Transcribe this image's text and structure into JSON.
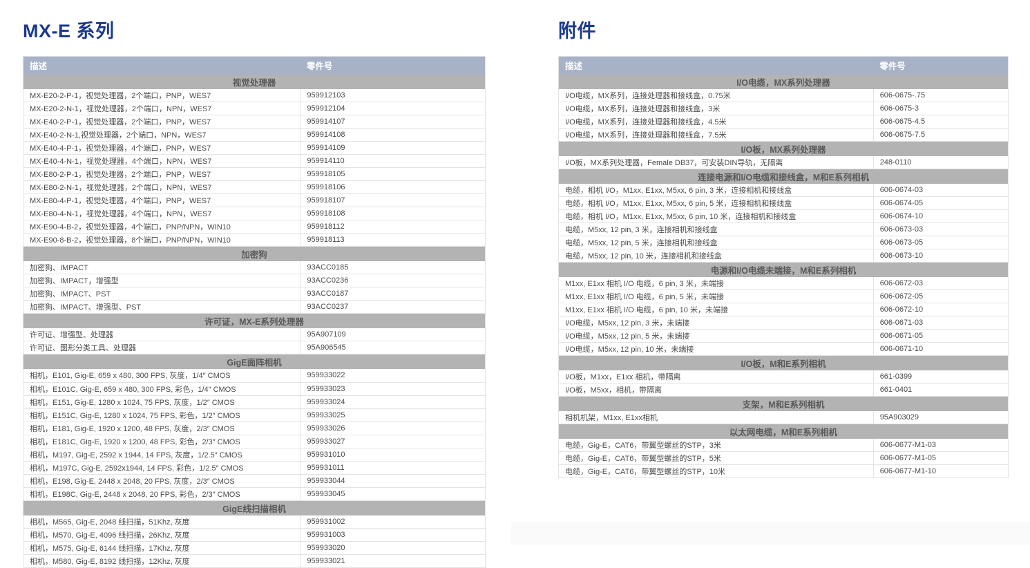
{
  "colors": {
    "title_color": "#1b3a8e",
    "header_bg": "#a7b2c7",
    "header_text": "#ffffff",
    "section_bg": "#b3b3b3",
    "section_text": "#595959",
    "row_text": "#4b4b4b",
    "border": "#e3e3e3",
    "footer_shade": "#fafafa"
  },
  "left": {
    "title": "MX-E 系列",
    "columns": {
      "description": "描述",
      "part": "零件号"
    },
    "sections": [
      {
        "header": "视觉处理器",
        "tall": false,
        "rows": [
          {
            "description": "MX-E20-2-P-1，视觉处理器，2个端口，PNP，WES7",
            "part": "959912103"
          },
          {
            "description": "MX-E20-2-N-1，视觉处理器，2个端口，NPN，WES7",
            "part": "959912104"
          },
          {
            "description": "MX-E40-2-P-1，视觉处理器，2个端口，PNP，WES7",
            "part": "959914107"
          },
          {
            "description": "MX-E40-2-N-1,视觉处理器，2个端口，NPN，WES7",
            "part": "959914108"
          },
          {
            "description": "MX-E40-4-P-1，视觉处理器，4个端口，PNP，WES7",
            "part": "959914109"
          },
          {
            "description": "MX-E40-4-N-1，视觉处理器，4个端口，NPN，WES7",
            "part": "959914110"
          },
          {
            "description": "MX-E80-2-P-1，视觉处理器，2个端口，PNP，WES7",
            "part": "959918105"
          },
          {
            "description": "MX-E80-2-N-1，视觉处理器，2个端口，NPN，WES7",
            "part": "959918106"
          },
          {
            "description": "MX-E80-4-P-1，视觉处理器，4个端口，PNP，WES7",
            "part": "959918107"
          },
          {
            "description": "MX-E80-4-N-1，视觉处理器，4个端口，NPN，WES7",
            "part": "959918108"
          },
          {
            "description": "MX-E90-4-B-2，视觉处理器，4个端口，PNP/NPN，WIN10",
            "part": "959918112"
          },
          {
            "description": "MX-E90-8-B-2，视觉处理器，8个端口，PNP/NPN，WIN10",
            "part": "959918113"
          }
        ]
      },
      {
        "header": "加密狗",
        "tall": false,
        "rows": [
          {
            "description": "加密狗、IMPACT",
            "part": "93ACC0185"
          },
          {
            "description": "加密狗、IMPACT，增强型",
            "part": "93ACC0236"
          },
          {
            "description": "加密狗、IMPACT、PST",
            "part": "93ACC0187"
          },
          {
            "description": "加密狗、IMPACT、增强型、PST",
            "part": "93ACC0237"
          }
        ]
      },
      {
        "header": "许可证，MX-E系列处理器",
        "tall": false,
        "rows": [
          {
            "description": "许可证、增强型、处理器",
            "part": "95A907109"
          },
          {
            "description": "许可证、图形分类工具、处理器",
            "part": "95A906545"
          }
        ]
      },
      {
        "header": "GigE面阵相机",
        "tall": true,
        "rows": [
          {
            "description": "相机，E101, Gig-E, 659 x 480, 300 FPS, 灰度，1/4″ CMOS",
            "part": "959933022"
          },
          {
            "description": "相机，E101C, Gig-E, 659 x 480, 300 FPS, 彩色，1/4″ CMOS",
            "part": "959933023"
          },
          {
            "description": "相机，E151, Gig-E, 1280 x 1024, 75 FPS, 灰度，1/2″ CMOS",
            "part": "959933024"
          },
          {
            "description": "相机，E151C, Gig-E, 1280 x 1024, 75 FPS, 彩色，1/2″ CMOS",
            "part": "959933025"
          },
          {
            "description": "相机，E181, Gig-E, 1920 x 1200, 48 FPS, 灰度，2/3″ CMOS",
            "part": "959933026"
          },
          {
            "description": "相机，E181C, Gig-E, 1920 x 1200, 48 FPS, 彩色，2/3″ CMOS",
            "part": "959933027"
          },
          {
            "description": "相机，M197, Gig-E, 2592 x 1944, 14 FPS, 灰度，1/2.5″ CMOS",
            "part": "959931010"
          },
          {
            "description": "相机，M197C, Gig-E, 2592x1944, 14 FPS, 彩色，1/2.5″ CMOS",
            "part": "959931011"
          },
          {
            "description": "相机，E198, Gig-E, 2448 x 2048, 20 FPS, 灰度，2/3″ CMOS",
            "part": "959933044"
          },
          {
            "description": "相机，E198C, Gig-E, 2448 x 2048, 20 FPS, 彩色，2/3″ CMOS",
            "part": "959933045"
          }
        ]
      },
      {
        "header": "GigE线扫描相机",
        "tall": true,
        "rows": [
          {
            "description": "相机，M565, Gig-E, 2048 线扫描，51Khz, 灰度",
            "part": "959931002"
          },
          {
            "description": "相机，M570, Gig-E, 4096 线扫描，26Khz, 灰度",
            "part": "959931003"
          },
          {
            "description": "相机，M575, Gig-E, 6144 线扫描，17Khz, 灰度",
            "part": "959933020"
          },
          {
            "description": "相机，M580, Gig-E, 8192 线扫描，12Khz, 灰度",
            "part": "959933021"
          }
        ]
      }
    ]
  },
  "right": {
    "title": "附件",
    "columns": {
      "description": "描述",
      "part": "零件号"
    },
    "sections": [
      {
        "header": "I/O电缆，MX系列处理器",
        "tall": false,
        "rows": [
          {
            "description": "I/O电缆，MX系列，连接处理器和接线盒，0.75米",
            "part": "606-0675-.75"
          },
          {
            "description": "I/O电缆，MX系列，连接处理器和接线盒，3米",
            "part": "606-0675-3"
          },
          {
            "description": "I/O电缆，MX系列，连接处理器和接线盒，4.5米",
            "part": "606-0675-4.5"
          },
          {
            "description": "I/O电缆，MX系列，连接处理器和接线盒，7.5米",
            "part": "606-0675-7.5"
          }
        ]
      },
      {
        "header": "I/O板，MX系列处理器",
        "tall": false,
        "rows": [
          {
            "description": "I/O板，MX系列处理器，Female DB37，可安装DIN导轨，无隔离",
            "part": "248-0110"
          }
        ]
      },
      {
        "header": "连接电源和I/O电缆和接线盒，M和E系列相机",
        "tall": false,
        "rows": [
          {
            "description": "电缆，相机 I/O，M1xx, E1xx, M5xx, 6 pin, 3 米，连接相机和接线盒",
            "part": "606-0674-03"
          },
          {
            "description": "电缆，相机 I/O，M1xx, E1xx, M5xx, 6 pin, 5 米，连接相机和接线盒",
            "part": "606-0674-05"
          },
          {
            "description": "电缆，相机 I/O，M1xx, E1xx, M5xx, 6 pin, 10 米，连接相机和接线盒",
            "part": "606-0674-10"
          },
          {
            "description": "电缆，M5xx, 12 pin, 3 米，连接相机和接线盒",
            "part": "606-0673-03"
          },
          {
            "description": "电缆，M5xx, 12 pin, 5 米，连接相机和接线盒",
            "part": "606-0673-05"
          },
          {
            "description": "电缆，M5xx, 12 pin, 10 米，连接相机和接线盒",
            "part": "606-0673-10"
          }
        ]
      },
      {
        "header": "电源和I/O电缆未端接，M和E系列相机",
        "tall": false,
        "rows": [
          {
            "description": "M1xx, E1xx 相机 I/O 电缆，6 pin, 3 米，未端接",
            "part": "606-0672-03"
          },
          {
            "description": "M1xx, E1xx 相机 I/O 电缆，6 pin, 5 米，未端接",
            "part": "606-0672-05"
          },
          {
            "description": "M1xx, E1xx 相机 I/O 电缆，6 pin, 10 米，未端接",
            "part": "606-0672-10"
          },
          {
            "description": "I/O电缆，M5xx, 12 pin, 3 米，未端接",
            "part": "606-0671-03"
          },
          {
            "description": "I/O电缆，M5xx, 12 pin, 5 米，未端接",
            "part": "606-0671-05"
          },
          {
            "description": "I/O电缆，M5xx, 12 pin, 10 米，未端接",
            "part": "606-0671-10"
          }
        ]
      },
      {
        "header": "I/O板，M和E系列相机",
        "tall": false,
        "rows": [
          {
            "description": "I/O板，M1xx，E1xx 相机，带隔离",
            "part": "661-0399"
          },
          {
            "description": "I/O板，M5xx，相机，带隔离",
            "part": "661-0401"
          }
        ]
      },
      {
        "header": "支架，M和E系列相机",
        "tall": false,
        "rows": [
          {
            "description": "相机机架，M1xx, E1xx相机",
            "part": "95A903029"
          }
        ]
      },
      {
        "header": "以太网电缆，M和E系列相机",
        "tall": false,
        "rows": [
          {
            "description": "电缆，Gig-E，CAT6，带翼型螺丝的STP，3米",
            "part": "606-0677-M1-03"
          },
          {
            "description": "电缆，Gig-E，CAT6，带翼型螺丝的STP，5米",
            "part": "606-0677-M1-05"
          },
          {
            "description": "电缆，Gig-E，CAT6，带翼型螺丝的STP，10米",
            "part": "606-0677-M1-10"
          }
        ]
      }
    ]
  }
}
